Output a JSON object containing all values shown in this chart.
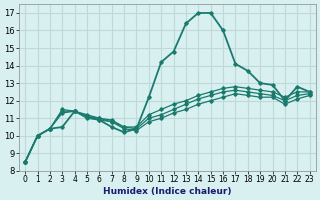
{
  "title": "",
  "xlabel": "Humidex (Indice chaleur)",
  "ylabel": "",
  "background_color": "#d8f0f0",
  "grid_color": "#c0d8d8",
  "line_color": "#1a7a6e",
  "xlim": [
    -0.5,
    23.5
  ],
  "ylim": [
    8,
    17.5
  ],
  "yticks": [
    8,
    9,
    10,
    11,
    12,
    13,
    14,
    15,
    16,
    17
  ],
  "xticks": [
    0,
    1,
    2,
    3,
    4,
    5,
    6,
    7,
    8,
    9,
    10,
    11,
    12,
    13,
    14,
    15,
    16,
    17,
    18,
    19,
    20,
    21,
    22,
    23
  ],
  "lines": [
    {
      "x": [
        0,
        1,
        2,
        3,
        4,
        5,
        6,
        7,
        8,
        9,
        10,
        11,
        12,
        13,
        14,
        15,
        16,
        17,
        18,
        19,
        20,
        21,
        22,
        23
      ],
      "y": [
        8.5,
        10.0,
        10.4,
        10.5,
        11.4,
        11.1,
        10.9,
        10.5,
        10.2,
        10.4,
        12.2,
        14.2,
        14.8,
        16.4,
        17.0,
        17.0,
        16.0,
        14.1,
        13.7,
        13.0,
        12.9,
        12.0,
        12.8,
        12.5
      ]
    },
    {
      "x": [
        0,
        1,
        2,
        3,
        4,
        5,
        6,
        7,
        8,
        9,
        10,
        11,
        12,
        13,
        14,
        15,
        16,
        17,
        18,
        19,
        20,
        21,
        22,
        23
      ],
      "y": [
        8.5,
        10.0,
        10.4,
        11.5,
        11.4,
        11.2,
        11.0,
        10.9,
        10.5,
        10.5,
        11.2,
        11.5,
        11.8,
        12.0,
        12.3,
        12.5,
        12.7,
        12.8,
        12.7,
        12.6,
        12.5,
        12.2,
        12.5,
        12.5
      ]
    },
    {
      "x": [
        0,
        1,
        2,
        3,
        4,
        5,
        6,
        7,
        8,
        9,
        10,
        11,
        12,
        13,
        14,
        15,
        16,
        17,
        18,
        19,
        20,
        21,
        22,
        23
      ],
      "y": [
        8.5,
        10.0,
        10.4,
        11.4,
        11.4,
        11.1,
        11.0,
        10.8,
        10.5,
        10.4,
        11.0,
        11.2,
        11.5,
        11.8,
        12.1,
        12.3,
        12.5,
        12.6,
        12.5,
        12.4,
        12.3,
        12.0,
        12.3,
        12.4
      ]
    },
    {
      "x": [
        0,
        1,
        2,
        3,
        4,
        5,
        6,
        7,
        8,
        9,
        10,
        11,
        12,
        13,
        14,
        15,
        16,
        17,
        18,
        19,
        20,
        21,
        22,
        23
      ],
      "y": [
        8.5,
        10.0,
        10.4,
        11.3,
        11.4,
        11.0,
        10.9,
        10.8,
        10.4,
        10.3,
        10.8,
        11.0,
        11.3,
        11.5,
        11.8,
        12.0,
        12.2,
        12.4,
        12.3,
        12.2,
        12.2,
        11.8,
        12.1,
        12.3
      ]
    }
  ]
}
